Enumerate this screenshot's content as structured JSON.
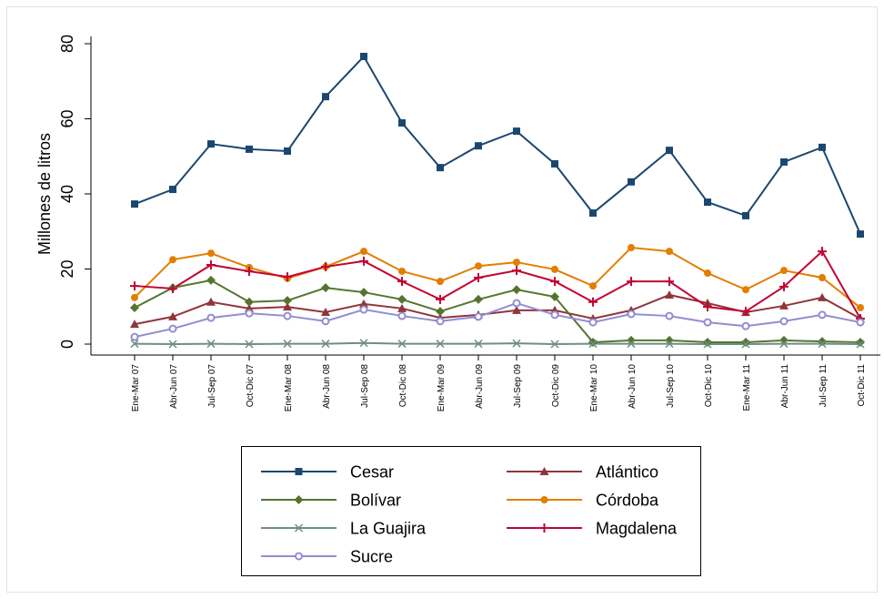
{
  "chart_data": {
    "type": "line",
    "y_label": "Millones de litros",
    "categories": [
      "Ene-Mar 07",
      "Abr-Jun 07",
      "Jul-Sep 07",
      "Oct-Dic 07",
      "Ene-Mar 08",
      "Abr-Jun 08",
      "Jul-Sep 08",
      "Oct-Dic 08",
      "Ene-Mar 09",
      "Abr-Jun 09",
      "Jul-Sep 09",
      "Oct-Dic 09",
      "Ene-Mar 10",
      "Abr-Jun 10",
      "Jul-Sep 10",
      "Oct-Dic 10",
      "Ene-Mar 11",
      "Abr-Jun 11",
      "Jul-Sep 11",
      "Oct-Dic 11"
    ],
    "ylim": [
      0,
      80
    ],
    "yticks": [
      0,
      20,
      40,
      60,
      80
    ],
    "grid": false,
    "series": [
      {
        "name": "Cesar",
        "color": "#1a476f",
        "marker": "square",
        "values": [
          37.3,
          41.2,
          53.3,
          51.9,
          51.4,
          65.9,
          76.6,
          58.9,
          47.0,
          52.8,
          56.7,
          48.0,
          34.9,
          43.2,
          51.6,
          37.8,
          34.2,
          48.5,
          52.4,
          29.3
        ]
      },
      {
        "name": "Atlántico",
        "color": "#90353b",
        "marker": "triangle",
        "values": [
          5.3,
          7.3,
          11.2,
          9.5,
          9.9,
          8.5,
          10.7,
          9.5,
          7.0,
          7.8,
          9.0,
          9.0,
          6.8,
          9.0,
          13.1,
          10.9,
          8.5,
          10.2,
          12.4,
          6.8
        ]
      },
      {
        "name": "Bolívar",
        "color": "#55752f",
        "marker": "diamond",
        "values": [
          9.7,
          15.0,
          17.0,
          11.2,
          11.6,
          15.0,
          13.8,
          11.9,
          8.7,
          11.9,
          14.5,
          12.6,
          0.5,
          1.0,
          1.0,
          0.5,
          0.5,
          1.0,
          0.7,
          0.5
        ]
      },
      {
        "name": "Córdoba",
        "color": "#e37e00",
        "marker": "circle",
        "values": [
          12.4,
          22.5,
          24.2,
          20.4,
          17.5,
          20.6,
          24.7,
          19.4,
          16.7,
          20.8,
          21.8,
          19.9,
          15.5,
          25.7,
          24.7,
          18.9,
          14.5,
          19.6,
          17.7,
          9.7
        ]
      },
      {
        "name": "La Guajira",
        "color": "#6e8e84",
        "marker": "x",
        "values": [
          0.1,
          0,
          0.1,
          0,
          0.1,
          0.1,
          0.3,
          0.1,
          0.1,
          0.1,
          0.2,
          0,
          0.1,
          0.1,
          0.1,
          0,
          0,
          0.1,
          0.1,
          0
        ]
      },
      {
        "name": "Magdalena",
        "color": "#c10534",
        "marker": "plus",
        "values": [
          15.5,
          14.8,
          21.1,
          19.4,
          17.9,
          20.6,
          22.1,
          16.7,
          11.9,
          17.7,
          19.6,
          16.7,
          11.2,
          16.7,
          16.7,
          9.9,
          8.7,
          15.3,
          24.7,
          6.8
        ]
      },
      {
        "name": "Sucre",
        "color": "#938dd2",
        "marker": "hollow-circle",
        "values": [
          1.9,
          4.1,
          7.0,
          8.2,
          7.5,
          6.1,
          9.2,
          7.5,
          6.1,
          7.3,
          10.9,
          7.8,
          5.8,
          8.0,
          7.5,
          5.8,
          4.8,
          6.1,
          7.8,
          5.8
        ]
      }
    ]
  }
}
